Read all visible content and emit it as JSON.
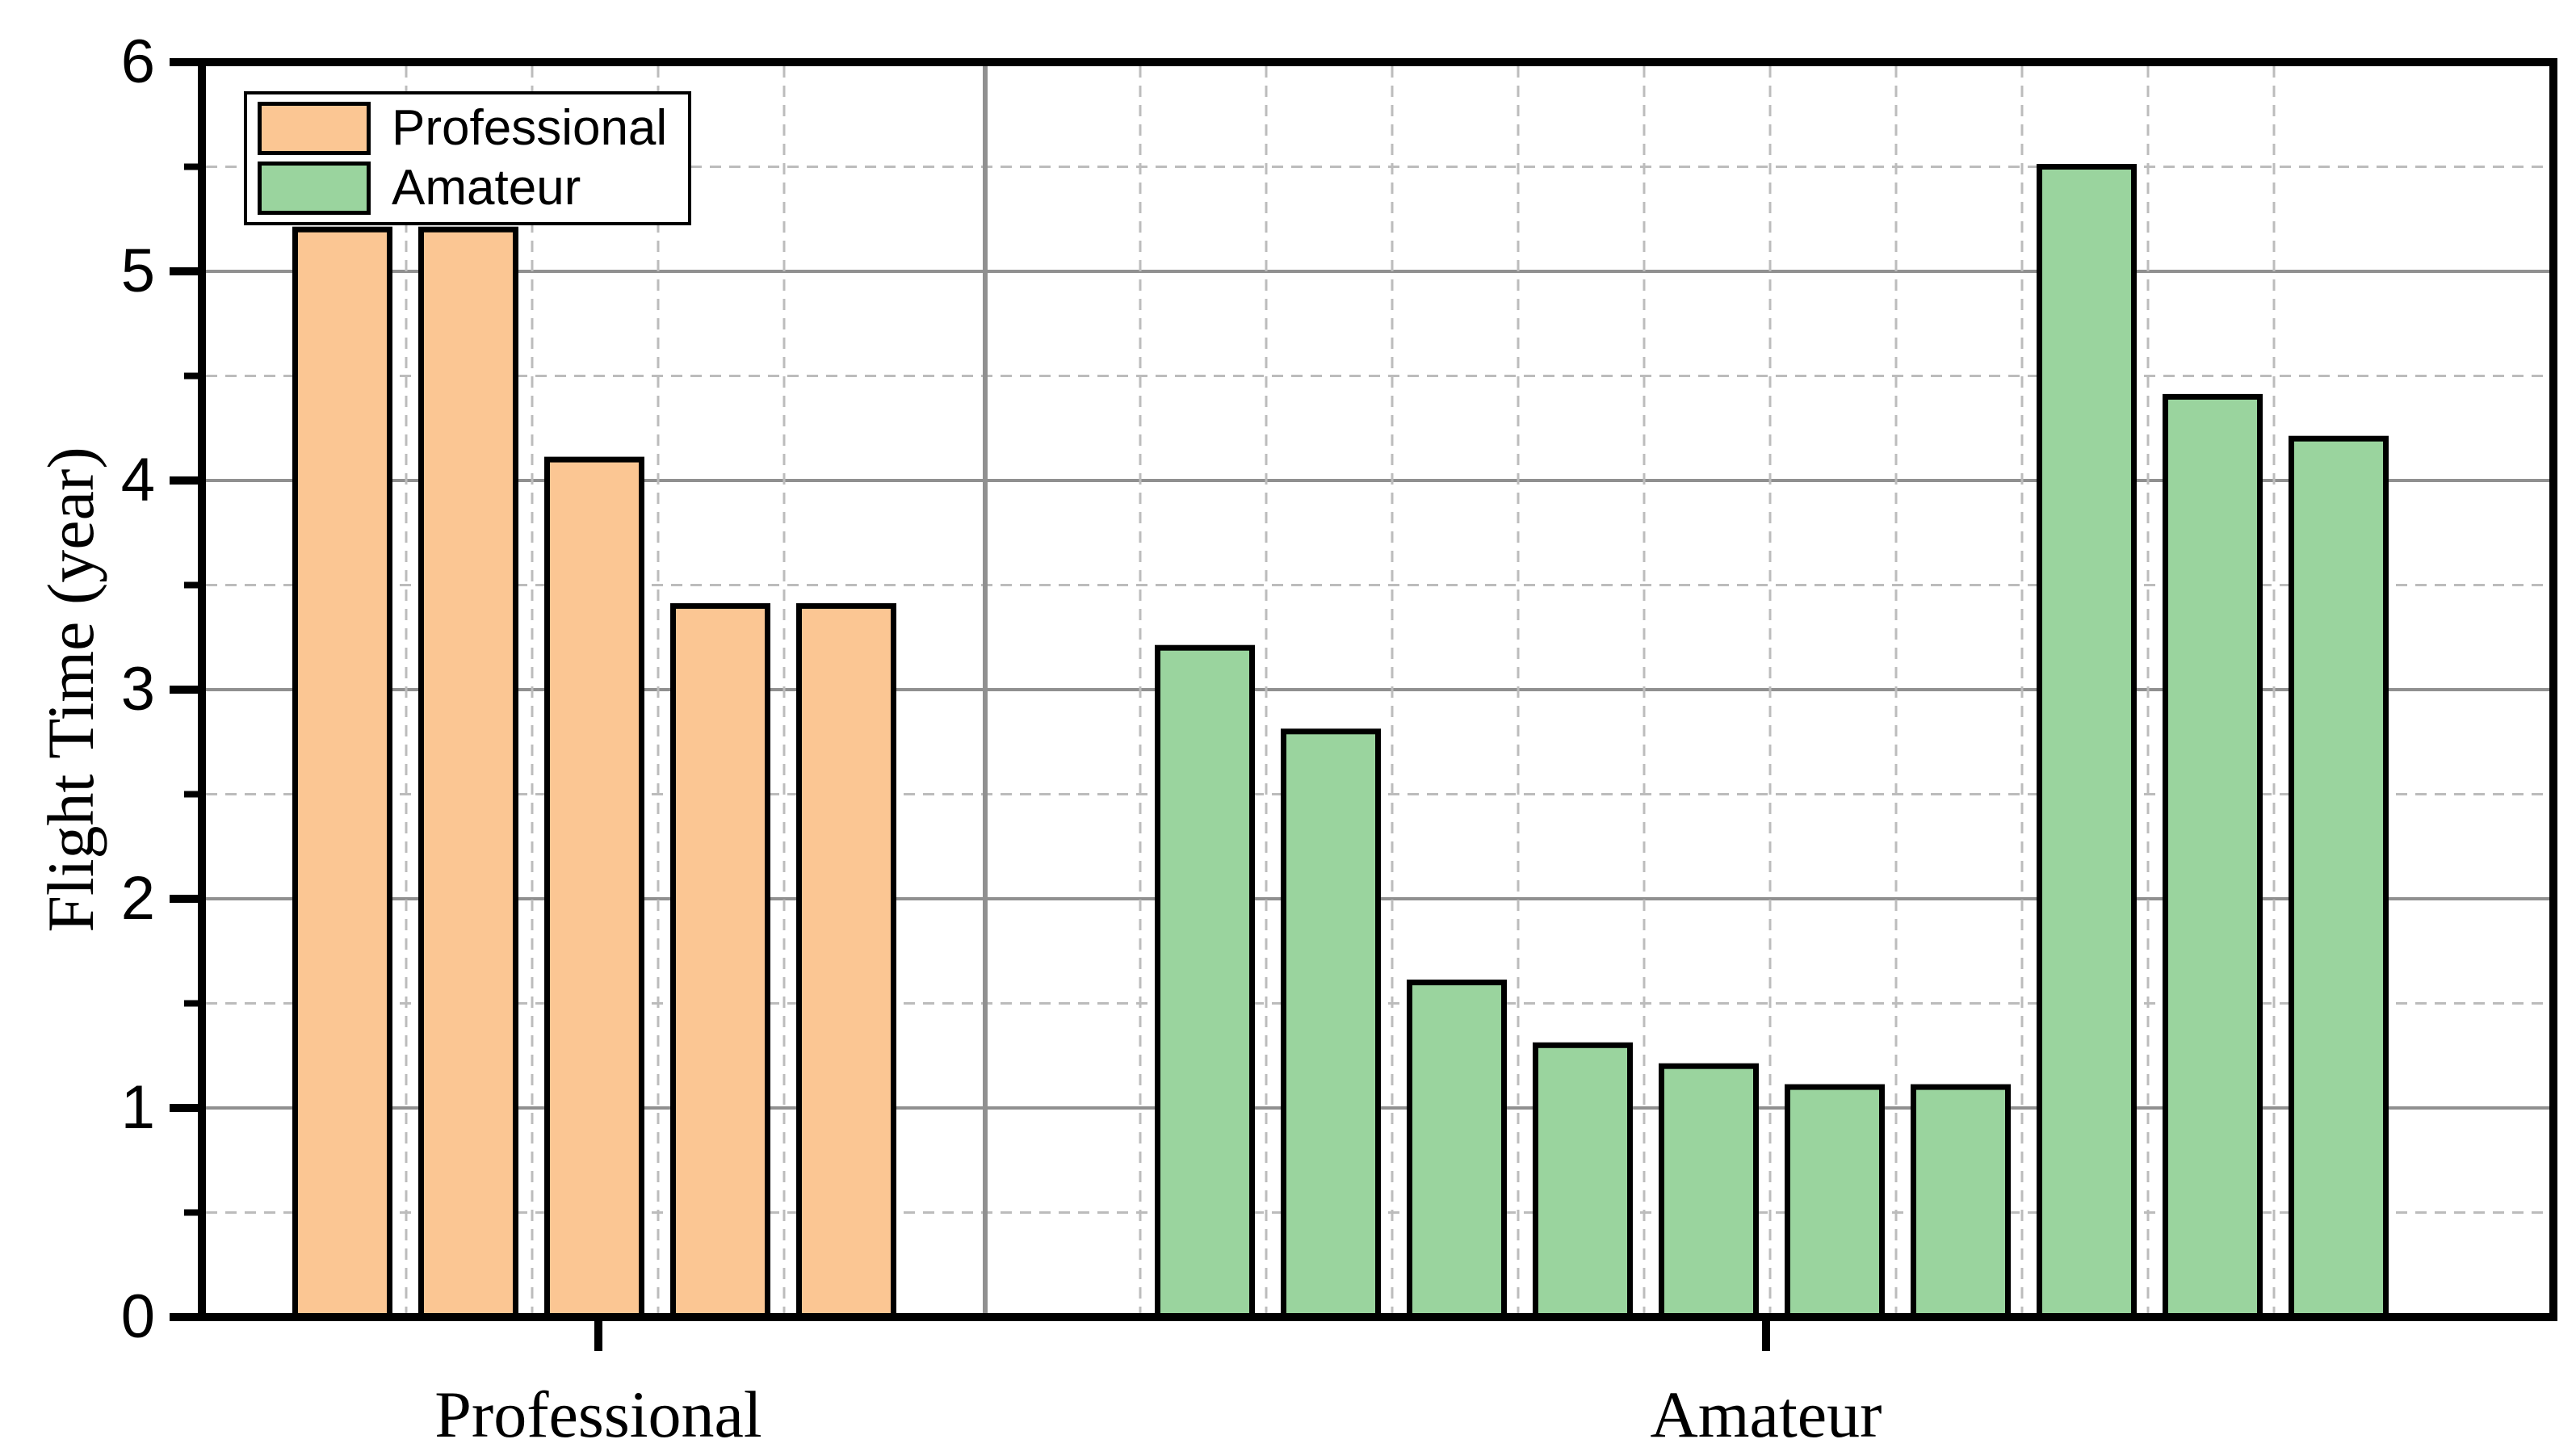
{
  "chart_data": {
    "type": "bar",
    "title": "",
    "xlabel": "",
    "ylabel": "Flight Time (year)",
    "ylim": [
      0,
      6
    ],
    "yticks": [
      0,
      1,
      2,
      3,
      4,
      5,
      6
    ],
    "y_minor_interval": 0.5,
    "categories": [
      "Professional",
      "Amateur"
    ],
    "series": [
      {
        "name": "Professional",
        "color": "#FBC693",
        "values": [
          5.2,
          5.2,
          4.1,
          3.4,
          3.4
        ]
      },
      {
        "name": "Amateur",
        "color": "#9AD49E",
        "values": [
          3.2,
          2.8,
          1.6,
          1.3,
          1.2,
          1.1,
          1.1,
          5.5,
          4.4,
          4.2
        ]
      }
    ],
    "legend": {
      "position": "top-left",
      "entries": [
        "Professional",
        "Amateur"
      ]
    },
    "grid": {
      "horizontal_major": "solid",
      "horizontal_minor": "dashed",
      "vertical_major": "solid",
      "vertical_minor": "dashed"
    }
  },
  "colors": {
    "background": "#ffffff",
    "axis": "#000000",
    "bar_edge": "#000000",
    "major_grid": "#909090",
    "minor_grid": "#bcbcbc",
    "text": "#000000"
  }
}
